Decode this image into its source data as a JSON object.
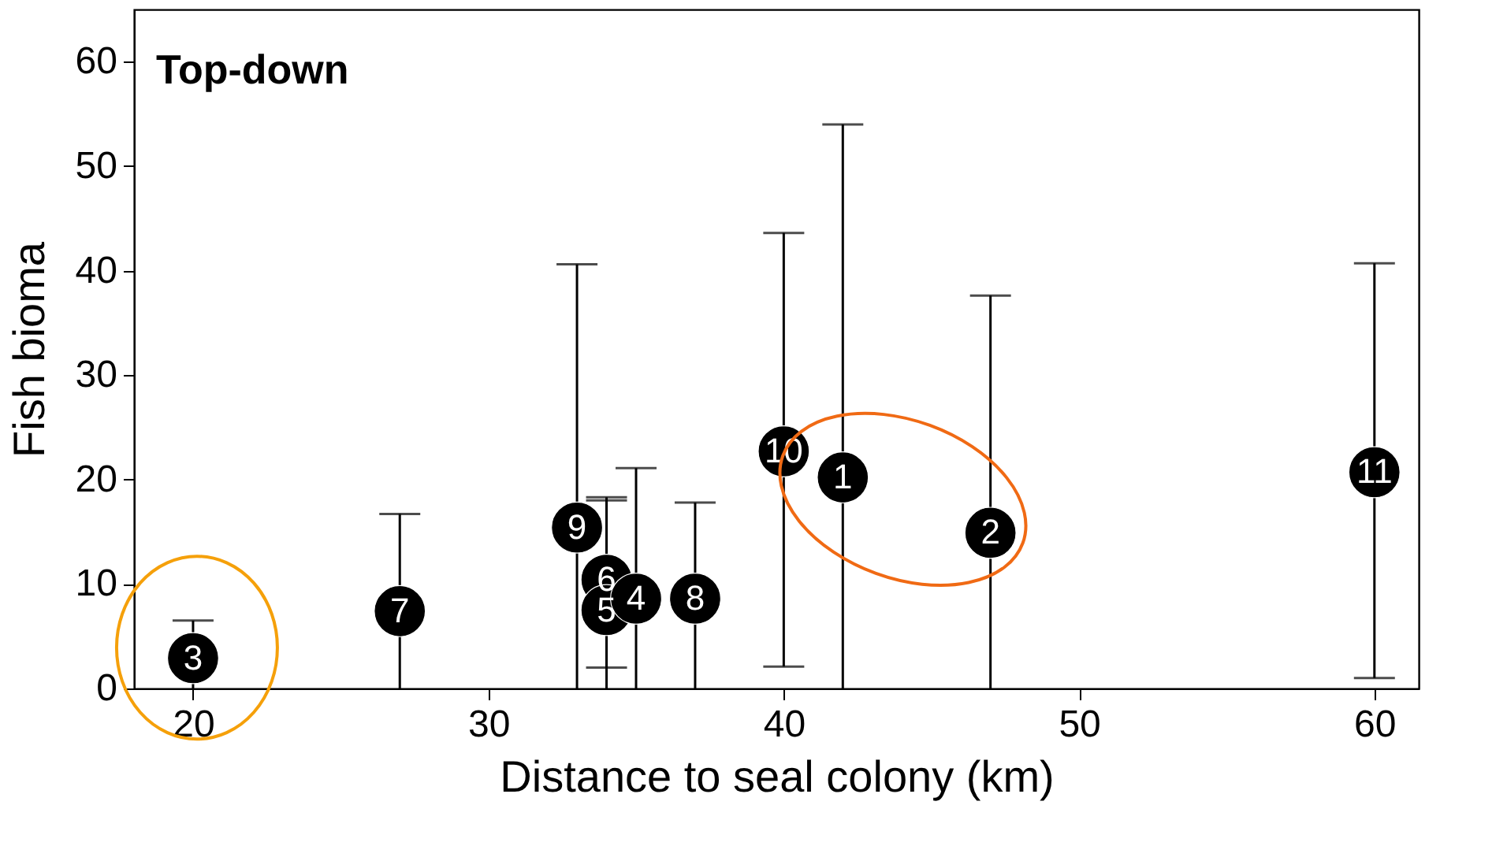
{
  "chart_data": {
    "type": "scatter",
    "title": "Top-down",
    "xlabel": "Distance to seal colony (km)",
    "ylabel": "Fish bioma",
    "x": [
      20,
      27,
      33,
      34,
      34,
      35,
      37,
      40,
      42,
      47,
      60
    ],
    "values": [
      2.9,
      7.4,
      15.4,
      10.4,
      7.5,
      8.6,
      8.6,
      22.7,
      20.2,
      14.9,
      20.7
    ],
    "errors": [
      [
        0,
        6.5
      ],
      [
        0,
        16.7
      ],
      [
        0,
        40.6
      ],
      [
        0,
        18.3
      ],
      [
        2,
        18
      ],
      [
        0,
        21.1
      ],
      [
        0,
        17.8
      ],
      [
        2.1,
        43.6
      ],
      [
        0,
        54
      ],
      [
        0,
        37.6
      ],
      [
        1,
        40.7
      ]
    ],
    "color": "#000000",
    "marker": "circle",
    "annotations": [
      {
        "text": "3",
        "x": 20,
        "y": 2.9
      },
      {
        "text": "7",
        "x": 27,
        "y": 7.4
      },
      {
        "text": "9",
        "x": 33,
        "y": 15.4
      },
      {
        "text": "6",
        "x": 34,
        "y": 10.4
      },
      {
        "text": "5",
        "x": 34,
        "y": 7.5
      },
      {
        "text": "4",
        "x": 35,
        "y": 8.6
      },
      {
        "text": "8",
        "x": 37,
        "y": 8.6
      },
      {
        "text": "10",
        "x": 40,
        "y": 22.7
      },
      {
        "text": "1",
        "x": 42,
        "y": 20.2
      },
      {
        "text": "2",
        "x": 47,
        "y": 14.9
      },
      {
        "text": "11",
        "x": 60,
        "y": 20.7
      }
    ],
    "xlim": [
      18,
      61.5
    ],
    "ylim": [
      0,
      65
    ],
    "xticks": [
      20,
      30,
      40,
      50,
      60
    ],
    "yticks": [
      0,
      10,
      20,
      30,
      40,
      50,
      60
    ],
    "grid": false
  }
}
